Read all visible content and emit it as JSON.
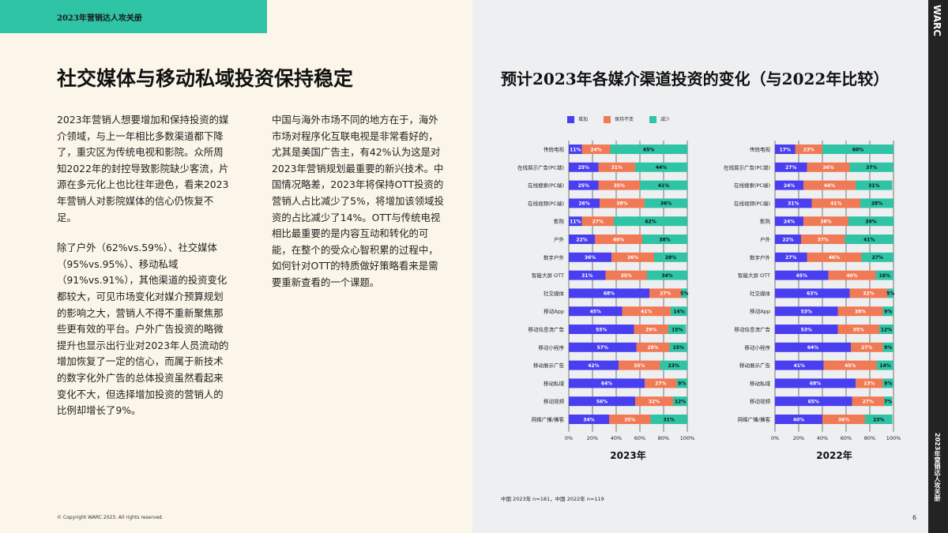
{
  "header": {
    "tab": "2023年营销达人攻关册"
  },
  "left": {
    "title": "社交媒体与移动私域投资保持稳定",
    "col1": [
      "2023年营销人想要增加和保持投资的媒介领域，与上一年相比多数渠道都下降了，重灾区为传统电视和影院。众所周知2022年的封控导致影院缺少客流，片源在多元化上也比往年逊色，看来2023年营销人对影院媒体的信心仍恢复不足。",
      "除了户外（62%vs.59%）、社交媒体（95%vs.95%）、移动私域（91%vs.91%），其他渠道的投资变化都较大，可见市场变化对媒介预算规划的影响之大，营销人不得不重新聚焦那些更有效的平台。户外广告投资的略微提升也显示出行业对2023年人员流动的增加恢复了一定的信心，而属于新技术的数字化外广告的总体投资虽然看起来变化不大，但选择增加投资的营销人的比例却增长了9%。"
    ],
    "col2": [
      "中国与海外市场不同的地方在于，海外市场对程序化互联电视是非常看好的，尤其是美国广告主，有42%认为这是对2023年营销规划最重要的新兴技术。中国情况略差，2023年将保持OTT投资的营销人占比减少了5%，将增加该领域投资的占比减少了14%。OTT与传统电视相比最重要的是内容互动和转化的可能，在整个的受众心智积累的过程中，如何针对OTT的特质做好策略看来是需要重新查看的一个课题。"
    ],
    "copyright": "© Copyright WARC 2023. All rights reserved."
  },
  "strip": {
    "brand": "WARC",
    "title": "2023年营销达人攻关册"
  },
  "page_number": "6",
  "note": "中国 2023年 n=181，中国 2022年 n=119",
  "chart_data": [
    {
      "type": "bar",
      "stacked": true,
      "orientation": "horizontal",
      "title": "预计2023年各媒介渠道投资的变化（与2022年比较）",
      "xlabel": "2023年",
      "xlim": [
        0,
        100
      ],
      "xticks": [
        "0%",
        "20%",
        "40%",
        "60%",
        "80%",
        "100%"
      ],
      "legend": "top",
      "grid": true,
      "categories": [
        "传统电视",
        "在线展示广告(PC端)",
        "在线搜索(PC端)",
        "在线视频(PC端)",
        "影院",
        "户外",
        "数字户外",
        "智能大屏 OTT",
        "社交媒体",
        "移动App",
        "移动信息流广告",
        "移动小程序",
        "移动展示广告",
        "移动私域",
        "移动视频",
        "网络广播/播客"
      ],
      "series": [
        {
          "name": "增加",
          "color": "#4a3ff0",
          "values": [
            11,
            25,
            25,
            26,
            11,
            22,
            36,
            31,
            68,
            45,
            55,
            57,
            42,
            64,
            56,
            34
          ]
        },
        {
          "name": "保持不变",
          "color": "#f07a55",
          "values": [
            24,
            31,
            35,
            38,
            27,
            40,
            36,
            35,
            27,
            41,
            29,
            28,
            35,
            27,
            32,
            35
          ]
        },
        {
          "name": "减少",
          "color": "#2ec4a5",
          "values": [
            65,
            44,
            41,
            36,
            62,
            38,
            28,
            34,
            5,
            14,
            15,
            15,
            23,
            9,
            12,
            31
          ]
        }
      ]
    },
    {
      "type": "bar",
      "stacked": true,
      "orientation": "horizontal",
      "xlabel": "2022年",
      "xlim": [
        0,
        100
      ],
      "xticks": [
        "0%",
        "20%",
        "40%",
        "60%",
        "80%",
        "100%"
      ],
      "grid": true,
      "categories": [
        "传统电视",
        "在线展示广告(PC端)",
        "在线搜索(PC端)",
        "在线视频(PC端)",
        "影院",
        "户外",
        "数字户外",
        "智能大屏 OTT",
        "社交媒体",
        "移动App",
        "移动信息流广告",
        "移动小程序",
        "移动展示广告",
        "移动私域",
        "移动视频",
        "网络广播/播客"
      ],
      "series": [
        {
          "name": "增加",
          "color": "#4a3ff0",
          "values": [
            17,
            27,
            24,
            31,
            24,
            22,
            27,
            45,
            63,
            53,
            53,
            64,
            41,
            68,
            65,
            40
          ]
        },
        {
          "name": "保持不变",
          "color": "#f07a55",
          "values": [
            23,
            36,
            44,
            41,
            38,
            37,
            46,
            40,
            32,
            38,
            35,
            27,
            45,
            23,
            27,
            36
          ]
        },
        {
          "name": "减少",
          "color": "#2ec4a5",
          "values": [
            60,
            37,
            31,
            28,
            39,
            41,
            27,
            16,
            5,
            9,
            12,
            9,
            14,
            9,
            7,
            23
          ]
        }
      ]
    }
  ]
}
